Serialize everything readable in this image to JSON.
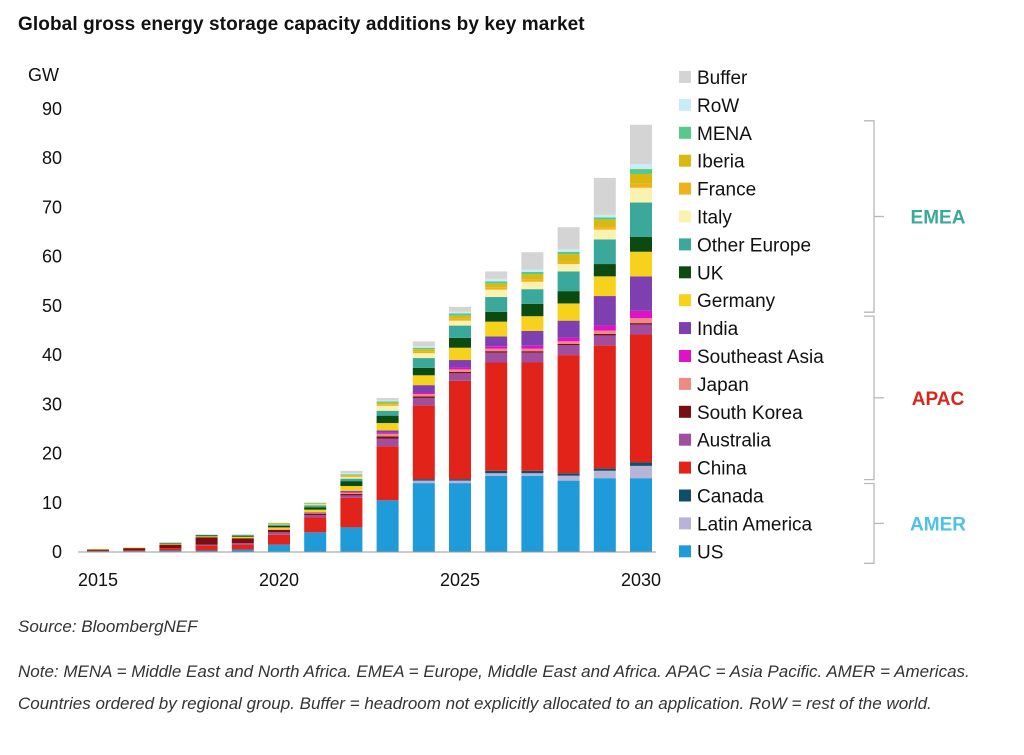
{
  "chart_data": {
    "type": "bar",
    "stacked": true,
    "title": "Global gross energy storage capacity additions by key market",
    "ylabel": "GW",
    "ylim": [
      0,
      90
    ],
    "yticks": [
      0,
      10,
      20,
      30,
      40,
      50,
      60,
      70,
      80,
      90
    ],
    "categories": [
      2015,
      2016,
      2017,
      2018,
      2019,
      2020,
      2021,
      2022,
      2023,
      2024,
      2025,
      2026,
      2027,
      2028,
      2029,
      2030
    ],
    "xtick_labels": [
      "2015",
      "2020",
      "2025",
      "2030"
    ],
    "legend_position": "right",
    "series": [
      {
        "name": "US",
        "color": "#1f9bd9",
        "values": [
          0.2,
          0.2,
          0.3,
          0.3,
          0.5,
          1.5,
          4.0,
          5.0,
          10.5,
          14.0,
          14.0,
          15.5,
          15.5,
          14.5,
          15.0,
          15.0
        ]
      },
      {
        "name": "Latin America",
        "color": "#b8b4d8",
        "values": [
          0,
          0,
          0,
          0,
          0,
          0,
          0,
          0,
          0,
          0.5,
          0.5,
          0.5,
          0.5,
          1.0,
          1.5,
          2.5
        ]
      },
      {
        "name": "Canada",
        "color": "#104e6a",
        "values": [
          0,
          0,
          0,
          0,
          0,
          0,
          0,
          0,
          0,
          0.3,
          0.3,
          0.5,
          0.5,
          0.5,
          0.5,
          0.7
        ]
      },
      {
        "name": "China",
        "color": "#e2231a",
        "values": [
          0.1,
          0.2,
          0.5,
          1.0,
          1.0,
          2.0,
          3.0,
          6.0,
          11.0,
          15.0,
          20.0,
          22.0,
          22.0,
          24.0,
          25.0,
          26.0
        ]
      },
      {
        "name": "Australia",
        "color": "#a14ea0",
        "values": [
          0,
          0,
          0,
          0.2,
          0.3,
          0.5,
          0.5,
          0.5,
          1.5,
          1.5,
          1.5,
          2.0,
          2.0,
          2.0,
          2.0,
          2.0
        ]
      },
      {
        "name": "South Korea",
        "color": "#7a0f12",
        "values": [
          0.2,
          0.4,
          0.7,
          1.5,
          1.0,
          0.5,
          0.3,
          0.3,
          0.5,
          0.3,
          0.3,
          0.3,
          0.3,
          0.3,
          0.3,
          0.3
        ]
      },
      {
        "name": "Japan",
        "color": "#ef8a82",
        "values": [
          0,
          0,
          0,
          0,
          0,
          0.1,
          0.2,
          0.3,
          0.5,
          0.5,
          0.5,
          0.5,
          0.5,
          0.5,
          0.7,
          1.0
        ]
      },
      {
        "name": "Southeast Asia",
        "color": "#e012c8",
        "values": [
          0,
          0,
          0,
          0,
          0,
          0,
          0,
          0.1,
          0.2,
          0.3,
          0.4,
          0.5,
          0.6,
          0.7,
          1.0,
          1.5
        ]
      },
      {
        "name": "India",
        "color": "#7e3fb0",
        "values": [
          0,
          0,
          0,
          0,
          0,
          0,
          0.1,
          0.2,
          0.5,
          1.5,
          1.5,
          2.0,
          3.0,
          3.5,
          6.0,
          7.0
        ]
      },
      {
        "name": "Germany",
        "color": "#f6d21c",
        "values": [
          0.1,
          0.1,
          0.2,
          0.2,
          0.3,
          0.4,
          0.5,
          1.0,
          1.5,
          2.0,
          2.5,
          3.0,
          3.0,
          3.5,
          4.0,
          5.0
        ]
      },
      {
        "name": "UK",
        "color": "#0b4a10",
        "values": [
          0,
          0,
          0.1,
          0.2,
          0.2,
          0.3,
          0.5,
          1.0,
          1.5,
          1.5,
          2.0,
          2.0,
          2.5,
          2.5,
          2.5,
          3.0
        ]
      },
      {
        "name": "Other Europe",
        "color": "#3aa89a",
        "values": [
          0,
          0,
          0.1,
          0.1,
          0.2,
          0.3,
          0.4,
          0.5,
          1.0,
          2.0,
          2.5,
          3.0,
          3.0,
          4.0,
          5.0,
          7.0
        ]
      },
      {
        "name": "Italy",
        "color": "#fbf2b0",
        "values": [
          0,
          0,
          0,
          0,
          0,
          0.1,
          0.2,
          0.3,
          1.0,
          1.0,
          1.0,
          1.5,
          1.5,
          1.5,
          2.0,
          3.0
        ]
      },
      {
        "name": "France",
        "color": "#f0b21a",
        "values": [
          0,
          0,
          0,
          0,
          0,
          0.1,
          0.1,
          0.2,
          0.3,
          0.3,
          0.5,
          0.5,
          0.5,
          0.5,
          0.5,
          0.8
        ]
      },
      {
        "name": "Iberia",
        "color": "#d9b90f",
        "values": [
          0,
          0,
          0,
          0,
          0,
          0.1,
          0.1,
          0.2,
          0.3,
          0.5,
          0.5,
          0.7,
          1.0,
          1.5,
          1.5,
          2.0
        ]
      },
      {
        "name": "MENA",
        "color": "#57c98a",
        "values": [
          0,
          0,
          0,
          0,
          0,
          0,
          0.1,
          0.2,
          0.3,
          0.3,
          0.5,
          0.5,
          0.5,
          0.5,
          0.5,
          1.0
        ]
      },
      {
        "name": "RoW",
        "color": "#c9ecf7",
        "values": [
          0,
          0,
          0,
          0,
          0,
          0.1,
          0.1,
          0.2,
          0.2,
          0.3,
          0.3,
          0.5,
          0.5,
          0.5,
          0.5,
          1.0
        ]
      },
      {
        "name": "Buffer",
        "color": "#d4d4d4",
        "values": [
          0,
          0,
          0,
          0,
          0,
          0,
          0,
          0.5,
          0.5,
          1.0,
          1.0,
          1.5,
          3.5,
          4.5,
          7.5,
          8.0
        ]
      }
    ],
    "legend_order": [
      "Buffer",
      "RoW",
      "MENA",
      "Iberia",
      "France",
      "Italy",
      "Other Europe",
      "UK",
      "Germany",
      "India",
      "Southeast Asia",
      "Japan",
      "South Korea",
      "Australia",
      "China",
      "Canada",
      "Latin America",
      "US"
    ],
    "region_groups": [
      {
        "name": "EMEA",
        "color": "#3aa89a",
        "members": [
          "MENA",
          "Iberia",
          "France",
          "Italy",
          "Other Europe",
          "UK",
          "Germany"
        ]
      },
      {
        "name": "APAC",
        "color": "#d9261c",
        "members": [
          "India",
          "Southeast Asia",
          "Japan",
          "South Korea",
          "Australia",
          "China"
        ]
      },
      {
        "name": "AMER",
        "color": "#4fc0e8",
        "members": [
          "Canada",
          "Latin America",
          "US"
        ]
      }
    ]
  },
  "source": "Source: BloombergNEF",
  "note": "Note: MENA = Middle East and North Africa. EMEA = Europe, Middle East and Africa. APAC = Asia Pacific. AMER = Americas. Countries ordered by regional group. Buffer = headroom not explicitly allocated to an application. RoW = rest of the world."
}
